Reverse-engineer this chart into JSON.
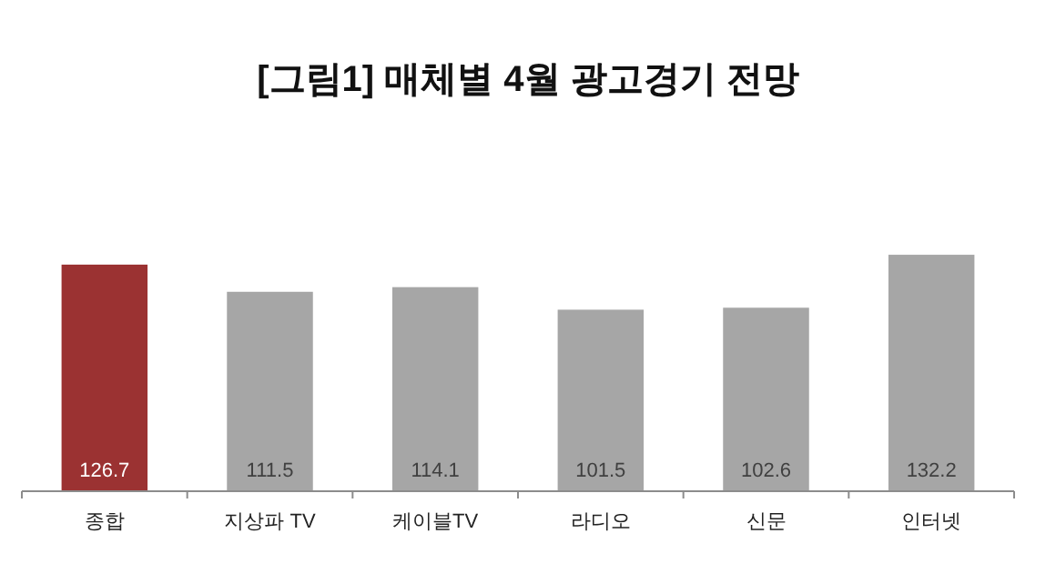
{
  "chart_data": {
    "type": "bar",
    "title": "[그림1] 매체별 4월 광고경기 전망",
    "categories": [
      "종합",
      "지상파 TV",
      "케이블TV",
      "라디오",
      "신문",
      "인터넷"
    ],
    "values": [
      126.7,
      111.5,
      114.1,
      101.5,
      102.6,
      132.2
    ],
    "colors": [
      "#9b3232",
      "#a6a6a6",
      "#a6a6a6",
      "#a6a6a6",
      "#a6a6a6",
      "#a6a6a6"
    ],
    "data_labels": true
  }
}
